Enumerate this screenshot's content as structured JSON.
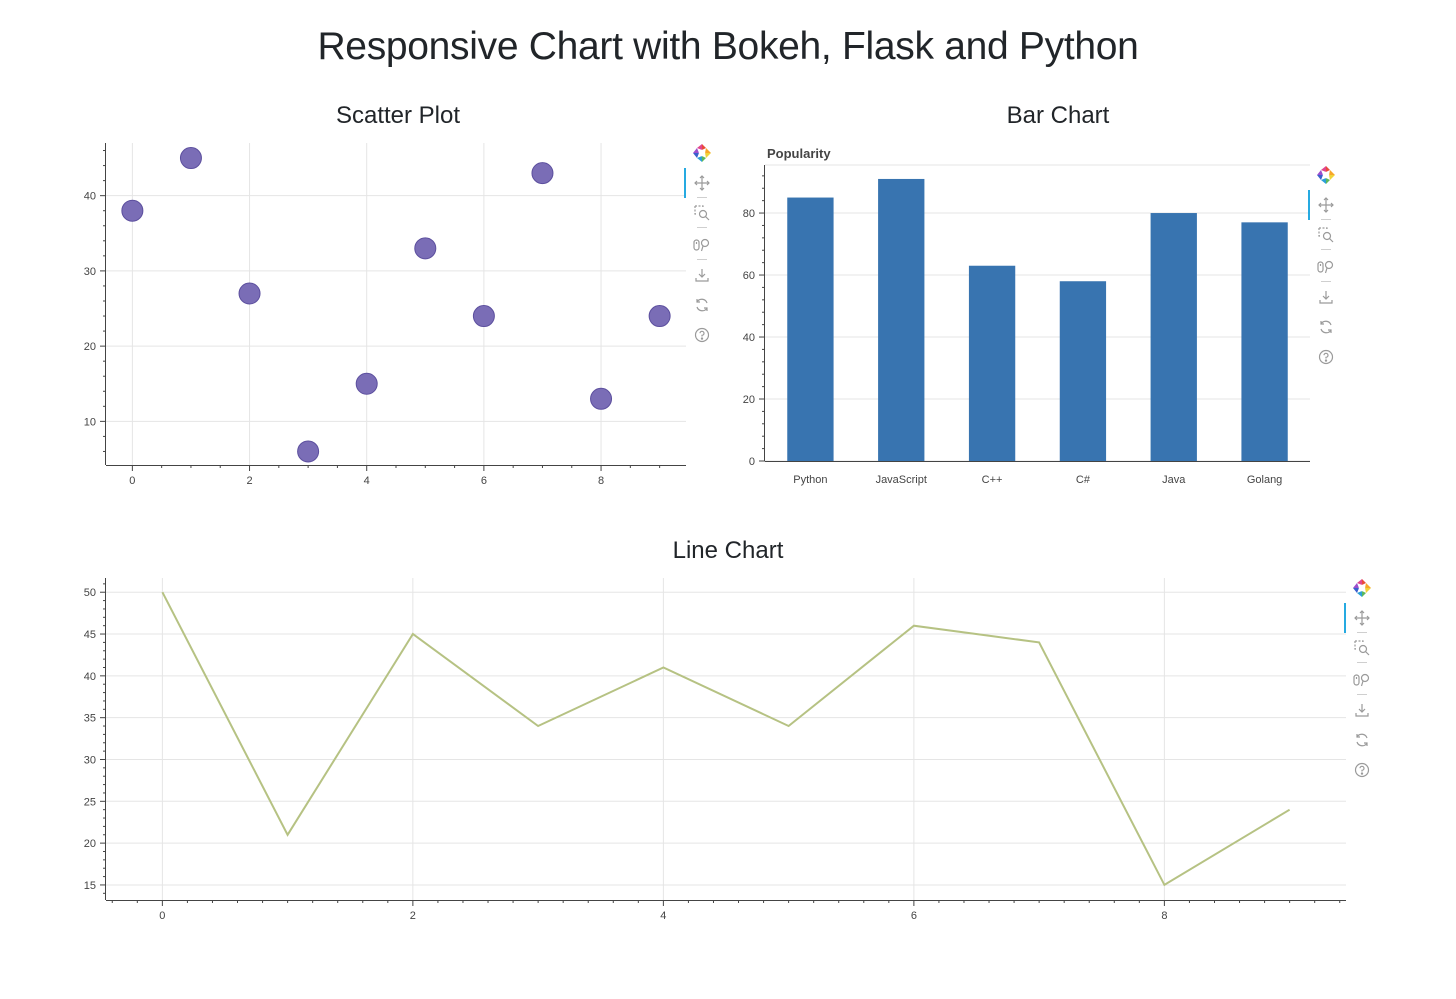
{
  "page": {
    "title": "Responsive Chart with Bokeh, Flask and Python"
  },
  "sections": {
    "scatter_title": "Scatter Plot",
    "bar_title": "Bar Chart",
    "line_title": "Line Chart"
  },
  "toolbar": {
    "tools": [
      "bokeh-logo-icon",
      "pan-icon",
      "box-zoom-icon",
      "wheel-zoom-icon",
      "save-icon",
      "reset-icon",
      "help-icon"
    ],
    "active_tool": "pan-icon"
  },
  "colors": {
    "scatter_fill": "#7a6db6",
    "scatter_stroke": "#5c4f9e",
    "bar_fill": "#3874b0",
    "line_stroke": "#b6c283",
    "grid": "#e5e5e5",
    "axis": "#444444"
  },
  "chart_data": [
    {
      "id": "scatter",
      "type": "scatter",
      "title": "",
      "x": [
        0,
        1,
        2,
        3,
        4,
        5,
        6,
        7,
        8,
        9
      ],
      "y": [
        38,
        45,
        27,
        6,
        15,
        33,
        24,
        43,
        13,
        24
      ],
      "xlim": [
        -0.45,
        9.45
      ],
      "ylim": [
        4.2,
        47
      ],
      "xticks": [
        0,
        2,
        4,
        6,
        8
      ],
      "yticks": [
        10,
        20,
        30,
        40
      ],
      "grid": true
    },
    {
      "id": "bar",
      "type": "bar",
      "title": "Popularity",
      "categories": [
        "Python",
        "JavaScript",
        "C++",
        "C#",
        "Java",
        "Golang"
      ],
      "values": [
        85,
        91,
        63,
        58,
        80,
        77
      ],
      "ylim": [
        0,
        95.5
      ],
      "yticks": [
        0,
        20,
        40,
        60,
        80
      ],
      "grid": true
    },
    {
      "id": "line",
      "type": "line",
      "title": "",
      "x": [
        0,
        1,
        2,
        3,
        4,
        5,
        6,
        7,
        8,
        9
      ],
      "y": [
        50,
        21,
        45,
        34,
        41,
        34,
        46,
        44,
        15,
        24
      ],
      "xlim": [
        -0.45,
        9.45
      ],
      "ylim": [
        13.2,
        51.7
      ],
      "xticks": [
        0,
        2,
        4,
        6,
        8
      ],
      "yticks": [
        15,
        20,
        25,
        30,
        35,
        40,
        45,
        50
      ],
      "grid": true
    }
  ]
}
